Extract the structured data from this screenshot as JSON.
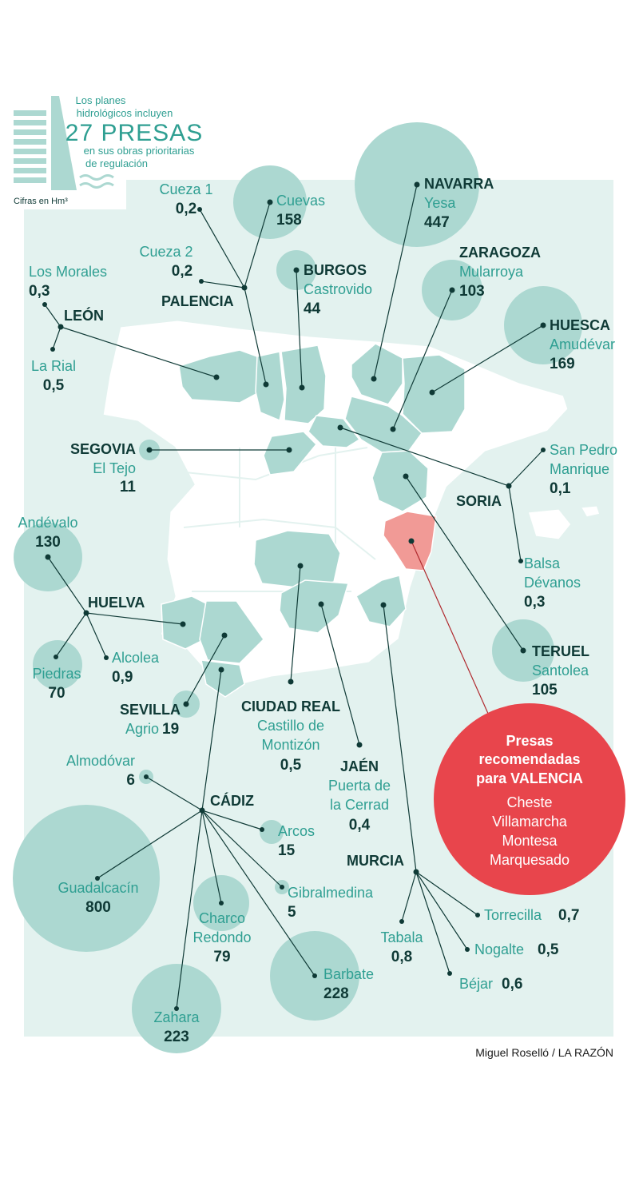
{
  "legend": {
    "intro_line1": "Los planes",
    "intro_line2": "hidrológicos incluyen",
    "headline": "27 PRESAS",
    "outro_line1": "en sus obras prioritarias",
    "outro_line2": "de regulación",
    "unit": "Cifras en Hm³"
  },
  "labels": {
    "navarra": "NAVARRA",
    "yesa": "Yesa",
    "yesa_v": "447",
    "cuevas": "Cuevas",
    "cuevas_v": "158",
    "cueza1": "Cueza 1",
    "cueza1_v": "0,2",
    "cueza2": "Cueza 2",
    "cueza2_v": "0,2",
    "palencia": "PALENCIA",
    "morales": "Los Morales",
    "morales_v": "0,3",
    "leon": "LEÓN",
    "rial": "La Rial",
    "rial_v": "0,5",
    "burgos": "BURGOS",
    "castrovido": "Castrovido",
    "castrovido_v": "44",
    "zaragoza": "ZARAGOZA",
    "mularroya": "Mularroya",
    "mularroya_v": "103",
    "huesca": "HUESCA",
    "amudevar": "Amudévar",
    "amudevar_v": "169",
    "segovia": "SEGOVIA",
    "tejo": "El Tejo",
    "tejo_v": "11",
    "sanpedro1": "San Pedro",
    "sanpedro2": "Manrique",
    "sanpedro_v": "0,1",
    "soria": "SORIA",
    "andevalo": "Andévalo",
    "andevalo_v": "130",
    "balsa1": "Balsa",
    "balsa2": "Dévanos",
    "balsa_v": "0,3",
    "huelva": "HUELVA",
    "alcolea": "Alcolea",
    "alcolea_v": "0,9",
    "piedras": "Piedras",
    "piedras_v": "70",
    "teruel": "TERUEL",
    "santolea": "Santolea",
    "santolea_v": "105",
    "sevilla": "SEVILLA",
    "agrio": "Agrio",
    "agrio_v": "19",
    "ciudadreal": "CIUDAD REAL",
    "castillo1": "Castillo de",
    "castillo2": "Montizón",
    "castillo_v": "0,5",
    "jaen": "JAÉN",
    "puerta1": "Puerta de",
    "puerta2": "la Cerrad",
    "puerta_v": "0,4",
    "almodovar": "Almodóvar",
    "almodovar_v": "6",
    "cadiz": "CÁDIZ",
    "arcos": "Arcos",
    "arcos_v": "15",
    "guadalcacin": "Guadalcacín",
    "guadalcacin_v": "800",
    "gibralmedina": "Gibralmedina",
    "gibralmedina_v": "5",
    "murcia": "MURCIA",
    "charco1": "Charco",
    "charco2": "Redondo",
    "charco_v": "79",
    "torrecilla": "Torrecilla",
    "torrecilla_v": "0,7",
    "tabala": "Tabala",
    "tabala_v": "0,8",
    "nogalte": "Nogalte",
    "nogalte_v": "0,5",
    "bejar": "Béjar",
    "bejar_v": "0,6",
    "barbate": "Barbate",
    "barbate_v": "228",
    "zahara": "Zahara",
    "zahara_v": "223"
  },
  "valencia": {
    "title1": "Presas",
    "title2": "recomendadas",
    "title3": "para VALENCIA",
    "dams": [
      "Cheste",
      "Villamarcha",
      "Montesa",
      "Marquesado"
    ]
  },
  "credit": "Miguel Roselló / LA RAZÓN",
  "colors": {
    "background": "#e3f2ef",
    "bubble": "#acd8d1",
    "dam_text": "#2f9f92",
    "dark": "#0f3a36",
    "valencia_red": "#e8454c",
    "valencia_region": "#f19a96"
  }
}
